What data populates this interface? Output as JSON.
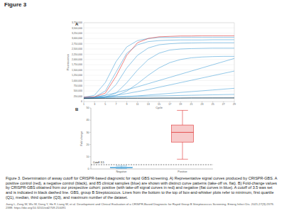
{
  "title": "Figure 3",
  "caption": "Figure 3. Determination of assay cutoff for CRISPR-based diagnostic for rapid GBS screening. A) Representative signal curves produced by CRISPR-GBS. A positive control (red), a negative control (black), and 85 clinical samples (blue) are shown with distinct curve patterns (take-off vs. flat). B) Fold-change values by CRISPR-GBS obtained from our prospective cohort: positive (with take-off signal curves in red) and negative (flat curves in blue). A cutoff of 3.5 was set and is indicated in black dashed line. GBS, group B Streptococcus. Lines from the bottom to the top of box-and-whisker plots refer to minimum, first quartile (Q1), median, third quartile (Q3), and maximum number of the dataset.",
  "citation": "Jiang L, Zeng W, Wu W, Deng Y, He F, Liang W, et al. Development and Clinical Evaluation of a CRISPR-Based Diagnostic for Rapid Group B Streptococcus Screening. Emerg Infect Dis. 2021;27(9):2379-2388. https://doi.org/10.3201/eid2709.210091",
  "chart_data": [
    {
      "type": "line",
      "title": "A",
      "x_label": "Cycle",
      "y_label": "Fluorescence",
      "x": [
        1,
        3,
        5,
        7,
        9,
        11,
        13,
        15,
        17,
        19,
        21,
        23,
        25,
        27,
        29
      ],
      "xlim": [
        1,
        29
      ],
      "xticks": [
        1,
        3,
        5,
        7,
        9,
        11,
        13,
        15,
        17,
        19,
        21,
        23,
        25,
        27,
        29
      ],
      "ylim": [
        0,
        3750000
      ],
      "yticks": [
        {
          "value": 0,
          "label": "0"
        },
        {
          "value": 250000,
          "label": "250,000"
        },
        {
          "value": 500000,
          "label": "500,000"
        },
        {
          "value": 750000,
          "label": "750,000"
        },
        {
          "value": 1000000,
          "label": "1,000,000"
        },
        {
          "value": 1250000,
          "label": "1,250,000"
        },
        {
          "value": 1500000,
          "label": "1,500,000"
        },
        {
          "value": 1750000,
          "label": "1,750,000"
        },
        {
          "value": 2000000,
          "label": "2,000,000"
        },
        {
          "value": 2250000,
          "label": "2,250,000"
        },
        {
          "value": 2500000,
          "label": "2,500,000"
        },
        {
          "value": 2750000,
          "label": "2,750,000"
        },
        {
          "value": 3000000,
          "label": "3,000,000"
        },
        {
          "value": 3250000,
          "label": "3,250,000"
        },
        {
          "value": 3500000,
          "label": "3,500,000"
        },
        {
          "value": 3750000,
          "label": "3,750,000"
        }
      ],
      "grid": true,
      "series": [
        {
          "color": "#4aa3d8",
          "values": [
            200000,
            300000,
            900000,
            1900000,
            2600000,
            2900000,
            3000000,
            3050000,
            3050000,
            3060000,
            3060000,
            3060000,
            3060000,
            3060000,
            3060000
          ]
        },
        {
          "color": "#4aa3d8",
          "values": [
            180000,
            220000,
            500000,
            1400000,
            2300000,
            2700000,
            2850000,
            2900000,
            2920000,
            2930000,
            2930000,
            2930000,
            2940000,
            2940000,
            2940000
          ]
        },
        {
          "color": "#4aa3d8",
          "values": [
            170000,
            200000,
            300000,
            800000,
            1600000,
            2200000,
            2550000,
            2700000,
            2750000,
            2780000,
            2790000,
            2800000,
            2800000,
            2800000,
            2800000
          ]
        },
        {
          "color": "#4aa3d8",
          "values": [
            160000,
            180000,
            220000,
            400000,
            900000,
            1500000,
            2000000,
            2300000,
            2450000,
            2500000,
            2520000,
            2530000,
            2540000,
            2540000,
            2540000
          ]
        },
        {
          "color": "#4aa3d8",
          "values": [
            150000,
            170000,
            200000,
            280000,
            500000,
            850000,
            1250000,
            1600000,
            1850000,
            2000000,
            2080000,
            2120000,
            2140000,
            2150000,
            2150000
          ]
        },
        {
          "color": "#4aa3d8",
          "values": [
            150000,
            200000,
            300000,
            420000,
            560000,
            700000,
            850000,
            1000000,
            1150000,
            1300000,
            1450000,
            1600000,
            1750000,
            1900000,
            2050000
          ]
        },
        {
          "color": "#4aa3d8",
          "values": [
            150000,
            180000,
            230000,
            300000,
            380000,
            470000,
            570000,
            680000,
            790000,
            900000,
            1010000,
            1120000,
            1230000,
            1340000,
            1450000
          ]
        },
        {
          "color": "#4aa3d8",
          "values": [
            160000,
            170000,
            190000,
            210000,
            240000,
            270000,
            310000,
            350000,
            390000,
            430000,
            470000,
            510000,
            550000,
            590000,
            630000
          ]
        },
        {
          "color": "#4aa3d8",
          "values": [
            200000,
            210000,
            220000,
            230000,
            240000,
            250000,
            260000,
            270000,
            280000,
            290000,
            300000,
            310000,
            320000,
            330000,
            340000
          ]
        },
        {
          "color": "#4aa3d8",
          "values": [
            140000,
            145000,
            150000,
            152000,
            155000,
            158000,
            160000,
            162000,
            164000,
            166000,
            168000,
            170000,
            172000,
            174000,
            176000
          ]
        },
        {
          "color": "#000000",
          "values": [
            150000,
            150000,
            155000,
            155000,
            160000,
            160000,
            160000,
            165000,
            165000,
            165000,
            170000,
            170000,
            170000,
            170000,
            170000
          ]
        },
        {
          "color": "#e03030",
          "values": [
            200000,
            220000,
            400000,
            1200000,
            2200000,
            2800000,
            3000000,
            3080000,
            3100000,
            3120000,
            3120000,
            3130000,
            3130000,
            3130000,
            3130000
          ]
        }
      ]
    },
    {
      "type": "box",
      "title": "B",
      "y_label": "Fold change",
      "categories": [
        "Negative",
        "Positive"
      ],
      "colors": [
        "#4aa3d8",
        "#e03030"
      ],
      "boxes": [
        {
          "min": 0.4,
          "q1": 0.9,
          "median": 1.1,
          "q3": 1.4,
          "max": 2.4
        },
        {
          "min": 8,
          "q1": 22,
          "median": 30,
          "q3": 36,
          "max": 48
        }
      ],
      "ylim": [
        0,
        50
      ],
      "yticks": [
        0,
        10,
        20,
        30,
        40,
        50
      ],
      "annotations": [
        {
          "text": "Cutoff: 3.5",
          "value": 3.5
        }
      ]
    }
  ]
}
